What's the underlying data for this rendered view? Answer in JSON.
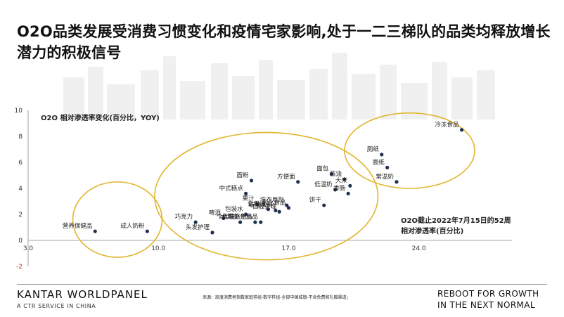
{
  "title": "O2O品类发展受消费习惯变化和疫情宅家影响,处于一二三梯队的品类均释放增长潜力的积极信号",
  "chart_data": {
    "type": "scatter",
    "ylabel": "O2O 相对渗透率变化(百分比，YOY)",
    "xlabel": "O2O截止2022年7月15日的52周相对渗透率(百分比)",
    "xlim": [
      3.0,
      29.0
    ],
    "ylim": [
      -2,
      10
    ],
    "x_ticks": [
      "3.0",
      "10.0",
      "17.0",
      "24.0"
    ],
    "y_ticks": [
      "10",
      "8",
      "6",
      "4",
      "2",
      "0",
      "-2"
    ],
    "points": [
      {
        "label": "营养保健品",
        "x": 6.6,
        "y": 0.7
      },
      {
        "label": "成人奶粉",
        "x": 9.4,
        "y": 0.7
      },
      {
        "label": "巧克力",
        "x": 12.0,
        "y": 1.4
      },
      {
        "label": "头发护理",
        "x": 12.9,
        "y": 0.6
      },
      {
        "label": "啤酒",
        "x": 13.5,
        "y": 1.7
      },
      {
        "label": "冰淇淋",
        "x": 14.4,
        "y": 1.4
      },
      {
        "label": "包装水",
        "x": 14.7,
        "y": 2.0
      },
      {
        "label": "个人洗涤用品",
        "x": 15.2,
        "y": 1.4
      },
      {
        "label": "女性卫生用品",
        "x": 15.5,
        "y": 1.4
      },
      {
        "label": "中式糕点",
        "x": 14.7,
        "y": 3.6
      },
      {
        "label": "面粉",
        "x": 15.0,
        "y": 4.6
      },
      {
        "label": "果汁",
        "x": 15.3,
        "y": 2.8
      },
      {
        "label": "食用油",
        "x": 15.9,
        "y": 2.4
      },
      {
        "label": "碳酸饮料",
        "x": 16.3,
        "y": 2.3
      },
      {
        "label": "口腔护理",
        "x": 16.5,
        "y": 2.2
      },
      {
        "label": "洗衣用剂",
        "x": 16.9,
        "y": 2.7
      },
      {
        "label": "影化食品",
        "x": 17.0,
        "y": 2.5
      },
      {
        "label": "方便面",
        "x": 17.5,
        "y": 4.5
      },
      {
        "label": "面包",
        "x": 19.3,
        "y": 5.1
      },
      {
        "label": "低温奶",
        "x": 19.5,
        "y": 3.9
      },
      {
        "label": "饼干",
        "x": 18.9,
        "y": 2.7
      },
      {
        "label": "酱油",
        "x": 20.0,
        "y": 4.7
      },
      {
        "label": "大米",
        "x": 20.3,
        "y": 4.2
      },
      {
        "label": "香肠",
        "x": 20.2,
        "y": 3.6
      },
      {
        "label": "冷冻食品",
        "x": 26.3,
        "y": 8.5
      },
      {
        "label": "厕纸",
        "x": 22.0,
        "y": 6.6
      },
      {
        "label": "面纸",
        "x": 22.3,
        "y": 5.6
      },
      {
        "label": "常温奶",
        "x": 22.8,
        "y": 4.5
      }
    ],
    "groups": [
      {
        "cx": 7.8,
        "cy": 1.6,
        "rx": 2.4,
        "ry": 2.9
      },
      {
        "cx": 15.8,
        "cy": 3.4,
        "rx": 6.0,
        "ry": 4.9
      },
      {
        "cx": 23.5,
        "cy": 6.9,
        "rx": 3.5,
        "ry": 2.9
      }
    ],
    "colors": {
      "point": "#1f3050",
      "ellipse": "#e2b52e",
      "axis": "#888888",
      "neg_tick": "#c0392b"
    }
  },
  "footer": {
    "brand": "KANTAR WORLDPANEL",
    "brand_sub": "A CTR SERVICE IN CHINA",
    "source": "来源：凯度消费者指数家庭样组-数字样组-全部中国城镇-不含免费和礼赠渠道；",
    "tagline_1": "REBOOT FOR GROWTH",
    "tagline_2": "IN THE NEXT NORMAL"
  }
}
